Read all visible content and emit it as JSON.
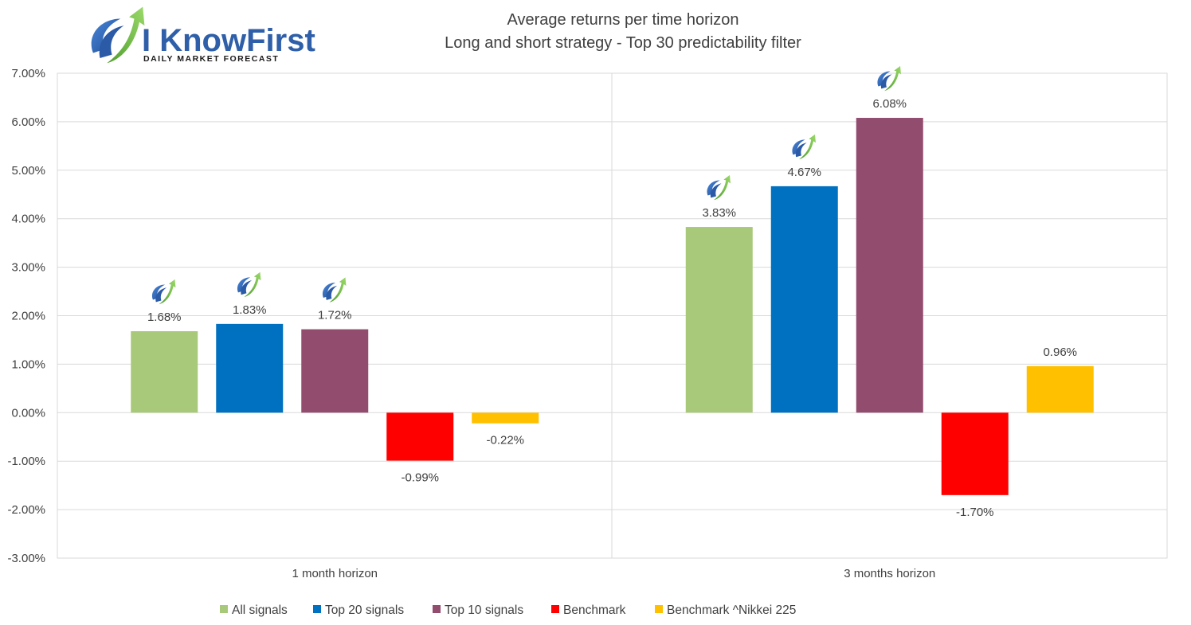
{
  "logo": {
    "name": "I KnowFirst",
    "tagline": "DAILY MARKET FORECAST",
    "colors": {
      "blue": "#2E5FA8",
      "green": "#6DBE45"
    }
  },
  "chart_data": {
    "type": "bar",
    "title": "Average returns per time horizon",
    "subtitle": "Long and short strategy - Top 30 predictability filter",
    "categories": [
      "1 month horizon",
      "3 months horizon"
    ],
    "series": [
      {
        "name": "All signals",
        "color": "#A9C97A",
        "values": [
          1.68,
          3.83
        ],
        "labels": [
          "1.68%",
          "3.83%"
        ],
        "logo_badge": true
      },
      {
        "name": "Top 20 signals",
        "color": "#0070C0",
        "values": [
          1.83,
          4.67
        ],
        "labels": [
          "1.83%",
          "4.67%"
        ],
        "logo_badge": true
      },
      {
        "name": "Top 10 signals",
        "color": "#924C6E",
        "values": [
          1.72,
          6.08
        ],
        "labels": [
          "1.72%",
          "6.08%"
        ],
        "logo_badge": true
      },
      {
        "name": "Benchmark",
        "color": "#FF0000",
        "values": [
          -0.99,
          -1.7
        ],
        "labels": [
          "-0.99%",
          "-1.70%"
        ],
        "logo_badge": false
      },
      {
        "name": "Benchmark ^Nikkei 225",
        "color": "#FFC000",
        "values": [
          -0.22,
          0.96
        ],
        "labels": [
          "-0.22%",
          "0.96%"
        ],
        "logo_badge": false
      }
    ],
    "y_ticks": [
      "7.00%",
      "6.00%",
      "5.00%",
      "4.00%",
      "3.00%",
      "2.00%",
      "1.00%",
      "0.00%",
      "-1.00%",
      "-2.00%",
      "-3.00%"
    ],
    "ylim": [
      -3,
      7
    ],
    "unit": "%",
    "grid": true,
    "legend_position": "bottom"
  }
}
